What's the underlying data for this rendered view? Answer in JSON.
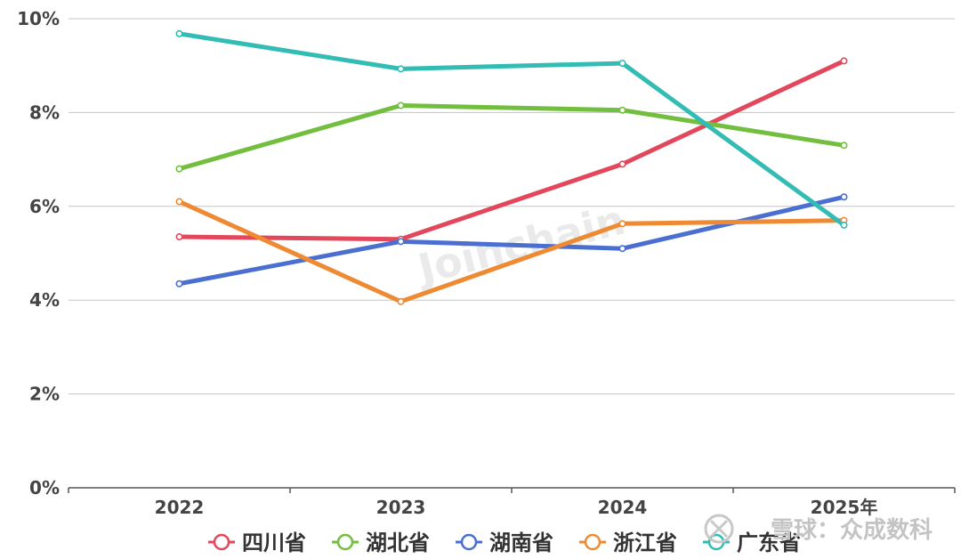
{
  "chart_data": {
    "type": "line",
    "categories": [
      "2022",
      "2023",
      "2024",
      "2025年"
    ],
    "ylim": [
      0,
      10
    ],
    "yticks": [
      "0%",
      "2%",
      "4%",
      "6%",
      "8%",
      "10%"
    ],
    "grid": true,
    "legend_position": "bottom",
    "series": [
      {
        "name": "四川省",
        "color": "#e2475c",
        "values": [
          5.35,
          5.3,
          6.9,
          9.1
        ]
      },
      {
        "name": "湖北省",
        "color": "#72be3e",
        "values": [
          6.8,
          8.15,
          8.05,
          7.3
        ]
      },
      {
        "name": "湖南省",
        "color": "#4a6fd1",
        "values": [
          4.35,
          5.25,
          5.1,
          6.2
        ]
      },
      {
        "name": "浙江省",
        "color": "#ee8a33",
        "values": [
          6.1,
          3.97,
          5.63,
          5.7
        ]
      },
      {
        "name": "广东省",
        "color": "#33bcb4",
        "values": [
          9.68,
          8.93,
          9.05,
          5.6
        ]
      }
    ]
  },
  "watermarks": {
    "center": "Joinchain",
    "corner": "雪球：众成数科"
  }
}
